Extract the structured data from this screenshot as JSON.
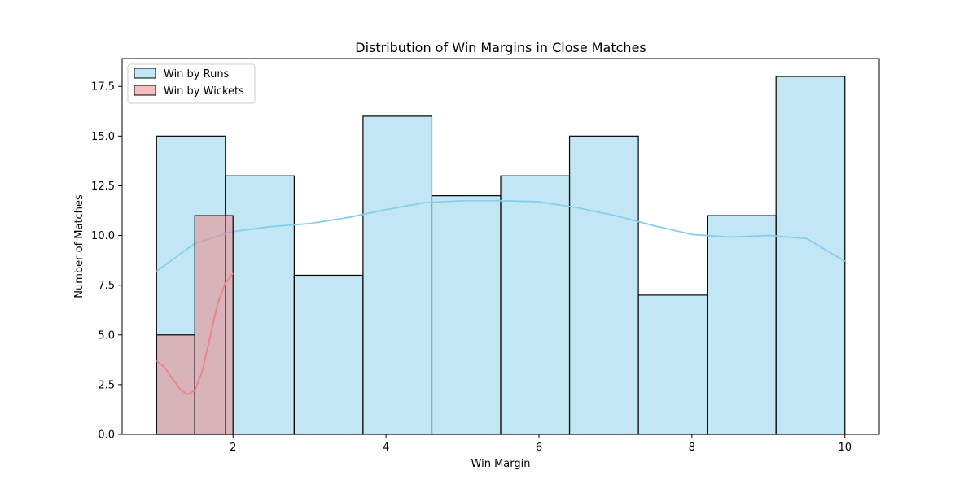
{
  "chart_data": {
    "type": "bar",
    "title": "Distribution of Win Margins in Close Matches",
    "xlabel": "Win Margin",
    "ylabel": "Number of Matches",
    "xlim": [
      0.55,
      10.45
    ],
    "ylim": [
      0,
      18.9
    ],
    "xticks": [
      2,
      4,
      6,
      8,
      10
    ],
    "yticks": [
      0.0,
      2.5,
      5.0,
      7.5,
      10.0,
      12.5,
      15.0,
      17.5
    ],
    "grid": false,
    "legend_position": "upper-left",
    "series": [
      {
        "name": "Win by Runs",
        "fill": "#87ceeb",
        "fill_opacity": 0.5,
        "edge": "#000000",
        "kde_color": "#87ceeb",
        "bins": [
          {
            "x0": 1.0,
            "x1": 1.9,
            "count": 15
          },
          {
            "x0": 1.9,
            "x1": 2.8,
            "count": 13
          },
          {
            "x0": 2.8,
            "x1": 3.7,
            "count": 8
          },
          {
            "x0": 3.7,
            "x1": 4.6,
            "count": 16
          },
          {
            "x0": 4.6,
            "x1": 5.5,
            "count": 12
          },
          {
            "x0": 5.5,
            "x1": 6.4,
            "count": 13
          },
          {
            "x0": 6.4,
            "x1": 7.3,
            "count": 15
          },
          {
            "x0": 7.3,
            "x1": 8.2,
            "count": 7
          },
          {
            "x0": 8.2,
            "x1": 9.1,
            "count": 11
          },
          {
            "x0": 9.1,
            "x1": 10.0,
            "count": 18
          }
        ],
        "kde": [
          [
            1.0,
            8.2
          ],
          [
            1.5,
            9.6
          ],
          [
            2.0,
            10.2
          ],
          [
            2.5,
            10.45
          ],
          [
            3.0,
            10.6
          ],
          [
            3.5,
            10.9
          ],
          [
            4.0,
            11.3
          ],
          [
            4.5,
            11.65
          ],
          [
            5.0,
            11.75
          ],
          [
            5.5,
            11.75
          ],
          [
            6.0,
            11.7
          ],
          [
            6.5,
            11.4
          ],
          [
            7.0,
            11.0
          ],
          [
            7.5,
            10.5
          ],
          [
            8.0,
            10.05
          ],
          [
            8.5,
            9.92
          ],
          [
            9.0,
            10.0
          ],
          [
            9.5,
            9.85
          ],
          [
            10.0,
            8.7
          ]
        ]
      },
      {
        "name": "Win by Wickets",
        "fill": "#f08080",
        "fill_opacity": 0.5,
        "edge": "#000000",
        "kde_color": "#f08080",
        "bins": [
          {
            "x0": 1.0,
            "x1": 1.5,
            "count": 5
          },
          {
            "x0": 1.5,
            "x1": 2.0,
            "count": 11
          }
        ],
        "kde": [
          [
            1.0,
            3.7
          ],
          [
            1.1,
            3.4
          ],
          [
            1.2,
            2.85
          ],
          [
            1.3,
            2.3
          ],
          [
            1.4,
            2.0
          ],
          [
            1.5,
            2.2
          ],
          [
            1.6,
            3.2
          ],
          [
            1.7,
            4.9
          ],
          [
            1.8,
            6.6
          ],
          [
            1.9,
            7.6
          ],
          [
            2.0,
            8.1
          ]
        ]
      }
    ]
  }
}
